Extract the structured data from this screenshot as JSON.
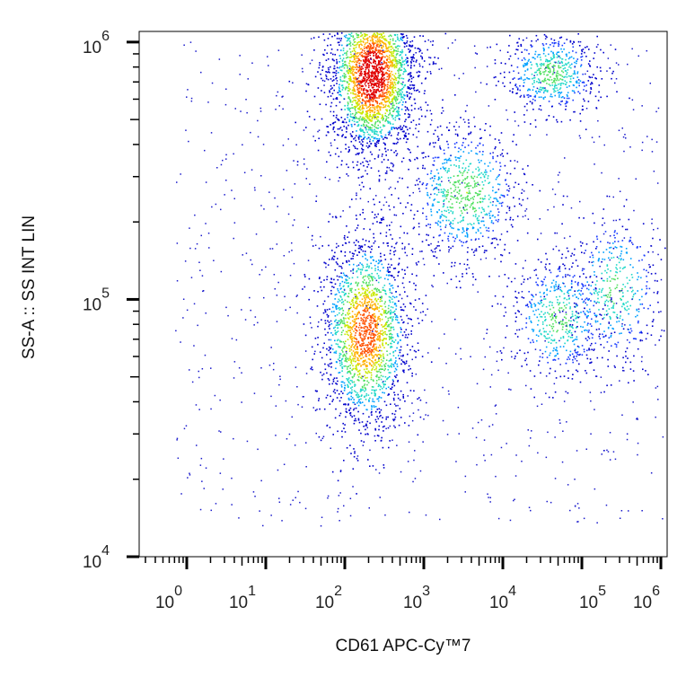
{
  "chart_data": {
    "type": "scatter",
    "title": "",
    "xlabel": "CD61 APC-Cy™7",
    "ylabel": "SS-A :: SS INT LIN",
    "x_scale": "log",
    "y_scale": "log",
    "xlim": [
      0.25,
      1200000
    ],
    "ylim": [
      10000,
      1100000
    ],
    "x_ticks": [
      {
        "value": 1,
        "base": "10",
        "exp": "0"
      },
      {
        "value": 10,
        "base": "10",
        "exp": "1"
      },
      {
        "value": 100,
        "base": "10",
        "exp": "2"
      },
      {
        "value": 1000,
        "base": "10",
        "exp": "3"
      },
      {
        "value": 10000,
        "base": "10",
        "exp": "4"
      },
      {
        "value": 100000,
        "base": "10",
        "exp": "5"
      },
      {
        "value": 1000000,
        "base": "10",
        "exp": "6"
      }
    ],
    "y_ticks": [
      {
        "value": 10000,
        "base": "10",
        "exp": "4"
      },
      {
        "value": 100000,
        "base": "10",
        "exp": "5"
      },
      {
        "value": 1000000,
        "base": "10",
        "exp": "6"
      }
    ],
    "grid": false,
    "legend": "none",
    "density_colormap": [
      "#0000cc",
      "#1a3cff",
      "#00a0ff",
      "#20d8c8",
      "#50e060",
      "#c8e800",
      "#ffb000",
      "#ff5000",
      "#e00000"
    ],
    "populations": [
      {
        "center_x": 220,
        "center_y": 750000,
        "spread_x_decades": 0.28,
        "spread_y_decades": 0.16,
        "relative_density": 1.0
      },
      {
        "center_x": 180,
        "center_y": 75000,
        "spread_x_decades": 0.28,
        "spread_y_decades": 0.19,
        "relative_density": 0.75
      },
      {
        "center_x": 3200,
        "center_y": 260000,
        "spread_x_decades": 0.35,
        "spread_y_decades": 0.13,
        "relative_density": 0.28
      },
      {
        "center_x": 40000,
        "center_y": 760000,
        "spread_x_decades": 0.3,
        "spread_y_decades": 0.08,
        "relative_density": 0.22
      },
      {
        "center_x": 50000,
        "center_y": 85000,
        "spread_x_decades": 0.3,
        "spread_y_decades": 0.12,
        "relative_density": 0.2
      },
      {
        "center_x": 250000,
        "center_y": 110000,
        "spread_x_decades": 0.3,
        "spread_y_decades": 0.15,
        "relative_density": 0.16
      }
    ]
  }
}
